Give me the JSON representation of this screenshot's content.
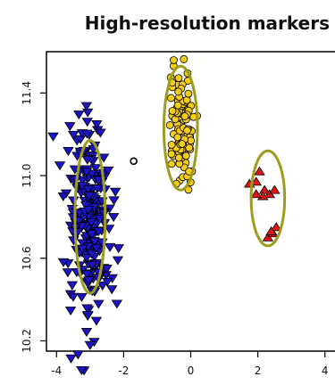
{
  "chart_data": {
    "type": "scatter",
    "title": "High-resolution markers",
    "xlabel": "",
    "ylabel": "",
    "xlim": [
      -4.3,
      4.3
    ],
    "ylim": [
      10.15,
      11.6
    ],
    "grid": false,
    "x_ticks": [
      -4,
      -2,
      0,
      2,
      4
    ],
    "y_ticks": [
      10.2,
      10.6,
      11.0,
      11.4
    ],
    "x_tick_labels": [
      "-4",
      "-2",
      "0",
      "2",
      "4"
    ],
    "y_tick_labels": [
      "10.2",
      "10.6",
      "11.0",
      "11.4"
    ],
    "clusters": [
      {
        "marker": "triangle-down",
        "fill": "#1c14c4",
        "ellipse": {
          "cx": -3.0,
          "cy": 10.8,
          "rx": 0.45,
          "ry": 0.37
        },
        "spread": {
          "x": 0.3,
          "y": 0.24
        },
        "count": 240,
        "outliers": [
          [
            -4.1,
            11.19
          ],
          [
            -2.2,
            10.38
          ],
          [
            -2.35,
            10.45
          ],
          [
            -3.0,
            10.18
          ],
          [
            -3.8,
            10.9
          ],
          [
            -2.3,
            10.8
          ],
          [
            -3.9,
            11.05
          ],
          [
            -2.5,
            10.55
          ]
        ]
      },
      {
        "marker": "circle",
        "fill": "#f5cc16",
        "ellipse": {
          "cx": -0.3,
          "cy": 11.23,
          "rx": 0.5,
          "ry": 0.3
        },
        "spread": {
          "x": 0.18,
          "y": 0.14
        },
        "count": 110,
        "outliers": [
          [
            -0.05,
            11.02
          ],
          [
            -0.55,
            11.45
          ]
        ]
      },
      {
        "marker": "triangle-up",
        "fill": "#e01515",
        "ellipse": {
          "cx": 2.3,
          "cy": 10.89,
          "rx": 0.5,
          "ry": 0.23
        },
        "spread": {
          "x": 0,
          "y": 0
        },
        "count": 0,
        "outliers": [
          [
            1.75,
            10.96
          ],
          [
            1.95,
            10.97
          ],
          [
            2.05,
            11.02
          ],
          [
            2.2,
            10.93
          ],
          [
            2.35,
            10.91
          ],
          [
            2.5,
            10.93
          ],
          [
            2.15,
            10.9
          ],
          [
            1.95,
            10.91
          ],
          [
            2.3,
            10.7
          ],
          [
            2.45,
            10.72
          ],
          [
            2.55,
            10.75
          ],
          [
            2.4,
            10.73
          ]
        ]
      }
    ],
    "annotations": [
      {
        "marker": "open-circle",
        "x": -1.7,
        "y": 11.07
      }
    ],
    "colors": {
      "ellipse": "#9c9c1e",
      "outline": "#000000",
      "axis": "#000000"
    }
  }
}
